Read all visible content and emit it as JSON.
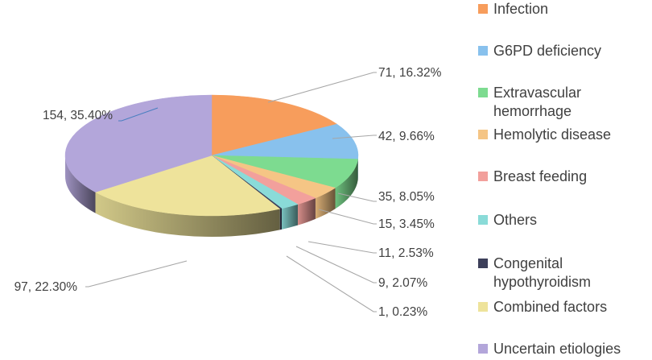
{
  "chart_data": {
    "type": "pie",
    "title": "",
    "legend_position": "right",
    "categories": [
      "Infection",
      "G6PD deficiency",
      "Extravascular hemorrhage",
      "Hemolytic disease",
      "Breast feeding",
      "Others",
      "Congenital hypothyroidism",
      "Combined factors",
      "Uncertain etiologies"
    ],
    "values": [
      71,
      42,
      35,
      15,
      11,
      9,
      1,
      97,
      154
    ],
    "percent_labels": [
      "16.32%",
      "9.66%",
      "8.05%",
      "3.45%",
      "2.53%",
      "2.07%",
      "0.23%",
      "22.30%",
      "35.40%"
    ],
    "data_labels": [
      "71, 16.32%",
      "42, 9.66%",
      "35, 8.05%",
      "15, 3.45%",
      "11, 2.53%",
      "9, 2.07%",
      "1, 0.23%",
      "97, 22.30%",
      "154, 35.40%"
    ],
    "colors": [
      "#F79D5C",
      "#88C1ED",
      "#7DDB90",
      "#F5C585",
      "#F2A09C",
      "#8ADBD8",
      "#3C3F5A",
      "#EEE39B",
      "#B3A6DA"
    ]
  }
}
